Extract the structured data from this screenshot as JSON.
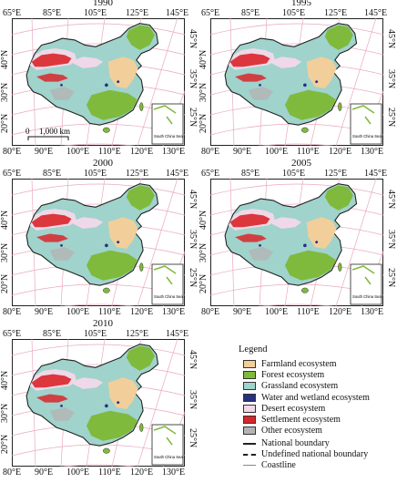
{
  "panels": [
    {
      "year": "1990",
      "lon_top": [
        "65°E",
        "85°E",
        "105°E",
        "125°E",
        "145°E"
      ],
      "lon_bottom": [
        "80°E",
        "90°E",
        "100°E",
        "110°E",
        "120°E",
        "130°E"
      ],
      "lat_left": [
        "40°N",
        "30°N",
        "20°N"
      ],
      "lat_right": [
        "45°N",
        "35°N",
        "25°N"
      ],
      "scale_bar": {
        "start": "0",
        "end": "1,000 km"
      },
      "inset": "South China Sea Islands"
    },
    {
      "year": "1995",
      "lon_top": [
        "65°E",
        "85°E",
        "105°E",
        "125°E",
        "145°E"
      ],
      "lon_bottom": [
        "80°E",
        "90°E",
        "100°E",
        "110°E",
        "120°E",
        "130°E"
      ],
      "lat_left": [
        "40°N",
        "30°N",
        "20°N"
      ],
      "lat_right": [
        "45°N",
        "35°N",
        "25°N"
      ],
      "inset": "South China Sea Islands"
    },
    {
      "year": "2000",
      "lon_top": [
        "65°E",
        "85°E",
        "105°E",
        "125°E",
        "145°E"
      ],
      "lon_bottom": [
        "80°E",
        "90°E",
        "100°E",
        "110°E",
        "120°E",
        "130°E"
      ],
      "lat_left": [
        "40°N",
        "30°N",
        "20°N"
      ],
      "lat_right": [
        "45°N",
        "35°N",
        "25°N"
      ],
      "inset": "South China Sea Islands"
    },
    {
      "year": "2005",
      "lon_top": [
        "65°E",
        "85°E",
        "105°E",
        "125°E",
        "145°E"
      ],
      "lon_bottom": [
        "80°E",
        "90°E",
        "100°E",
        "110°E",
        "120°E",
        "130°E"
      ],
      "lat_left": [
        "40°N",
        "30°N",
        "20°N"
      ],
      "lat_right": [
        "45°N",
        "35°N",
        "25°N"
      ],
      "inset": "South China Sea Islands"
    },
    {
      "year": "2010",
      "lon_top": [
        "65°E",
        "85°E",
        "105°E",
        "125°E",
        "145°E"
      ],
      "lon_bottom": [
        "80°E",
        "90°E",
        "100°E",
        "110°E",
        "120°E",
        "130°E"
      ],
      "lat_left": [
        "40°N",
        "30°N",
        "20°N"
      ],
      "lat_right": [
        "45°N",
        "35°N",
        "25°N"
      ],
      "inset": "South China Sea Islands"
    }
  ],
  "legend": {
    "title": "Legend",
    "items": [
      {
        "label": "Farmland ecosystem",
        "color": "#f2cf9a"
      },
      {
        "label": "Forest ecosystem",
        "color": "#7fba3c"
      },
      {
        "label": "Grassland ecosystem",
        "color": "#9fd3cc"
      },
      {
        "label": "Water and wetland ecosystem",
        "color": "#27307f"
      },
      {
        "label": "Desert ecosystem",
        "color": "#efd8e8"
      },
      {
        "label": "Settlement ecosystem",
        "color": "#d8262a"
      },
      {
        "label": "Other ecosystem",
        "color": "#b4b4b4"
      }
    ],
    "lines": [
      {
        "label": "National boundary",
        "style": "solid"
      },
      {
        "label": "Undefined national boundary",
        "style": "dashed"
      },
      {
        "label": "Coastline",
        "style": "thin"
      }
    ]
  },
  "colors": {
    "graticule": "#e9a9c0",
    "farmland": "#f2cf9a",
    "forest": "#7fba3c",
    "grassland": "#9fd3cc",
    "water": "#27307f",
    "desert": "#efd8e8",
    "settlement": "#d8262a",
    "other": "#b4b4b4"
  }
}
